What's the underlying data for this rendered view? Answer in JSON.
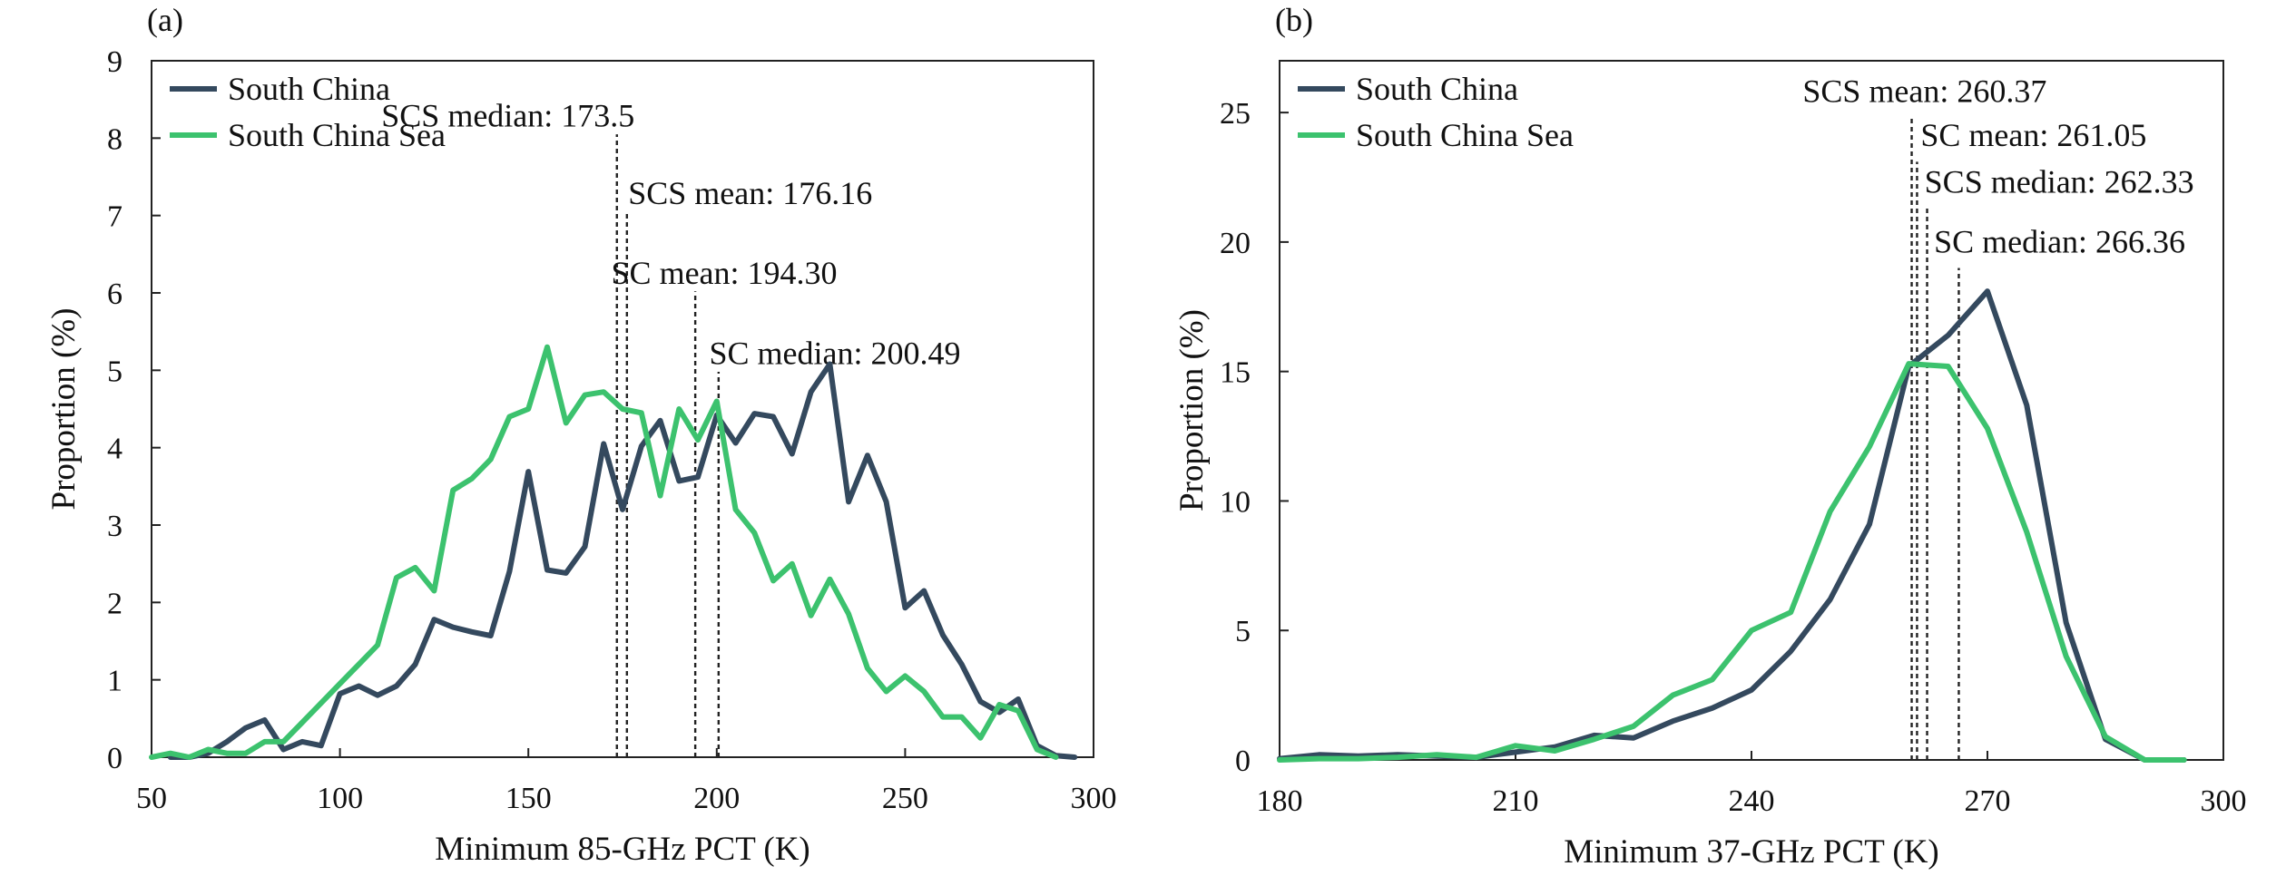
{
  "chart_data": [
    {
      "panel_label": "(a)",
      "type": "line",
      "xlabel": "Minimum 85-GHz PCT (K)",
      "ylabel": "Proportion (%)",
      "xlim": [
        50,
        300
      ],
      "ylim": [
        0,
        9
      ],
      "xticks": [
        50,
        100,
        150,
        200,
        250,
        300
      ],
      "yticks": [
        0,
        1,
        2,
        3,
        4,
        5,
        6,
        7,
        8,
        9
      ],
      "grid": false,
      "legend_position": "top-left",
      "series": [
        {
          "name": "South China",
          "color": "#34495e",
          "x": [
            55,
            60,
            65,
            70,
            75,
            80,
            85,
            90,
            95,
            100,
            105,
            110,
            115,
            120,
            125,
            130,
            135,
            140,
            145,
            150,
            155,
            160,
            165,
            170,
            175,
            180,
            185,
            190,
            195,
            200,
            205,
            210,
            215,
            220,
            225,
            230,
            235,
            240,
            245,
            250,
            255,
            260,
            265,
            270,
            275,
            280,
            285,
            290,
            295
          ],
          "y": [
            0.0,
            0.0,
            0.05,
            0.2,
            0.38,
            0.48,
            0.1,
            0.2,
            0.15,
            0.82,
            0.92,
            0.8,
            0.92,
            1.2,
            1.78,
            1.68,
            1.62,
            1.57,
            2.4,
            3.69,
            2.42,
            2.38,
            2.72,
            4.05,
            3.2,
            4.02,
            4.35,
            3.57,
            3.62,
            4.42,
            4.06,
            4.44,
            4.4,
            3.92,
            4.72,
            5.08,
            3.3,
            3.9,
            3.3,
            1.93,
            2.15,
            1.58,
            1.2,
            0.72,
            0.58,
            0.75,
            0.15,
            0.02,
            0.0
          ]
        },
        {
          "name": "South China Sea",
          "color": "#3cc26e",
          "x": [
            50,
            55,
            60,
            65,
            70,
            75,
            80,
            85,
            90,
            95,
            100,
            105,
            110,
            115,
            120,
            125,
            130,
            135,
            140,
            145,
            150,
            155,
            160,
            165,
            170,
            175,
            180,
            185,
            190,
            195,
            200,
            205,
            210,
            215,
            220,
            225,
            230,
            235,
            240,
            245,
            250,
            255,
            260,
            265,
            270,
            275,
            280,
            285,
            290
          ],
          "y": [
            0.0,
            0.05,
            0.0,
            0.1,
            0.05,
            0.05,
            0.2,
            0.2,
            0.45,
            0.7,
            0.95,
            1.2,
            1.45,
            2.32,
            2.45,
            2.15,
            3.45,
            3.6,
            3.85,
            4.4,
            4.5,
            5.3,
            4.32,
            4.68,
            4.72,
            4.5,
            4.45,
            3.38,
            4.5,
            4.1,
            4.6,
            3.2,
            2.9,
            2.28,
            2.5,
            1.83,
            2.3,
            1.85,
            1.15,
            0.85,
            1.05,
            0.85,
            0.52,
            0.52,
            0.25,
            0.68,
            0.6,
            0.1,
            0.0
          ]
        }
      ],
      "annotations": [
        {
          "label": "SCS median: 173.5",
          "x": 173.5,
          "top": 8.05,
          "text_x": 111,
          "text_y": 8.15
        },
        {
          "label": "SCS mean: 176.16",
          "x": 176.16,
          "top": 7.05,
          "text_x": 176.5,
          "text_y": 7.15
        },
        {
          "label": "SC mean: 194.30",
          "x": 194.3,
          "top": 6.02,
          "text_x": 172,
          "text_y": 6.12
        },
        {
          "label": "SC median: 200.49",
          "x": 200.49,
          "top": 4.98,
          "text_x": 198,
          "text_y": 5.08
        }
      ]
    },
    {
      "panel_label": "(b)",
      "type": "line",
      "xlabel": "Minimum 37-GHz PCT (K)",
      "ylabel": "Proportion (%)",
      "xlim": [
        180,
        300
      ],
      "ylim": [
        0,
        27
      ],
      "xticks": [
        180,
        210,
        240,
        270,
        300
      ],
      "yticks": [
        0,
        5,
        10,
        15,
        20,
        25
      ],
      "grid": false,
      "legend_position": "top-left",
      "series": [
        {
          "name": "South China",
          "color": "#34495e",
          "x": [
            180,
            185,
            190,
            195,
            200,
            205,
            210,
            215,
            220,
            225,
            230,
            235,
            240,
            245,
            250,
            255,
            260,
            265,
            270,
            275,
            280,
            285,
            290,
            295
          ],
          "y": [
            0.05,
            0.2,
            0.15,
            0.2,
            0.15,
            0.1,
            0.3,
            0.5,
            0.95,
            0.85,
            1.5,
            2.0,
            2.7,
            4.2,
            6.2,
            9.1,
            15.2,
            16.4,
            18.1,
            13.7,
            5.3,
            0.8,
            0.0,
            0.0
          ]
        },
        {
          "name": "South China Sea",
          "color": "#3cc26e",
          "x": [
            180,
            185,
            190,
            195,
            200,
            205,
            210,
            215,
            220,
            225,
            230,
            235,
            240,
            245,
            250,
            255,
            260,
            265,
            270,
            275,
            280,
            285,
            290,
            295
          ],
          "y": [
            0.0,
            0.05,
            0.05,
            0.1,
            0.2,
            0.1,
            0.55,
            0.35,
            0.8,
            1.3,
            2.5,
            3.1,
            5.0,
            5.7,
            9.6,
            12.1,
            15.3,
            15.2,
            12.8,
            8.8,
            4.0,
            0.9,
            0.0,
            0.0
          ]
        }
      ],
      "annotations": [
        {
          "label": "SCS mean: 260.37",
          "x": 260.37,
          "top": 24.8,
          "text_x": 246.5,
          "text_y": 25.4
        },
        {
          "label": "SC mean: 261.05",
          "x": 261.05,
          "top": 23.1,
          "text_x": 261.5,
          "text_y": 23.7
        },
        {
          "label": "SCS median: 262.33",
          "x": 262.33,
          "top": 21.3,
          "text_x": 262.0,
          "text_y": 21.9
        },
        {
          "label": "SC median: 266.36",
          "x": 266.36,
          "top": 19.0,
          "text_x": 263.2,
          "text_y": 19.6
        }
      ]
    }
  ]
}
